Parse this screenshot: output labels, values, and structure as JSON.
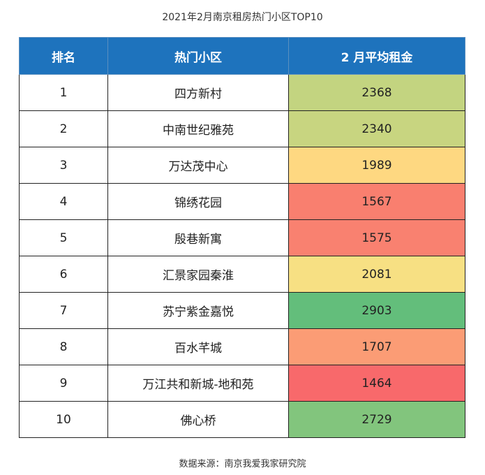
{
  "title": "2021年2月南京租房热门小区TOP10",
  "headers": [
    "排名",
    "热门小区",
    "2 月平均租金"
  ],
  "colors": {
    "header_bg": "#1e73bd",
    "scale_low": "#f8696b",
    "scale_mid": "#ffe283",
    "scale_high": "#63be7b"
  },
  "chart_data": {
    "type": "table",
    "columns": [
      "排名",
      "热门小区",
      "2 月平均租金"
    ],
    "rows": [
      {
        "rank": "1",
        "name": "四方新村",
        "rent": 2368
      },
      {
        "rank": "2",
        "name": "中南世纪雅苑",
        "rent": 2340
      },
      {
        "rank": "3",
        "name": "万达茂中心",
        "rent": 1989
      },
      {
        "rank": "4",
        "name": "锦绣花园",
        "rent": 1567
      },
      {
        "rank": "5",
        "name": "殷巷新寓",
        "rent": 1575
      },
      {
        "rank": "6",
        "name": "汇景家园秦淮",
        "rent": 2081
      },
      {
        "rank": "7",
        "name": "苏宁紫金嘉悦",
        "rent": 2903
      },
      {
        "rank": "8",
        "name": "百水芊城",
        "rent": 1707
      },
      {
        "rank": "9",
        "name": "万江共和新城-地和苑",
        "rent": 1464
      },
      {
        "rank": "10",
        "name": "佛心桥",
        "rent": 2729
      }
    ]
  },
  "source": "数据来源：南京我爱我家研究院"
}
